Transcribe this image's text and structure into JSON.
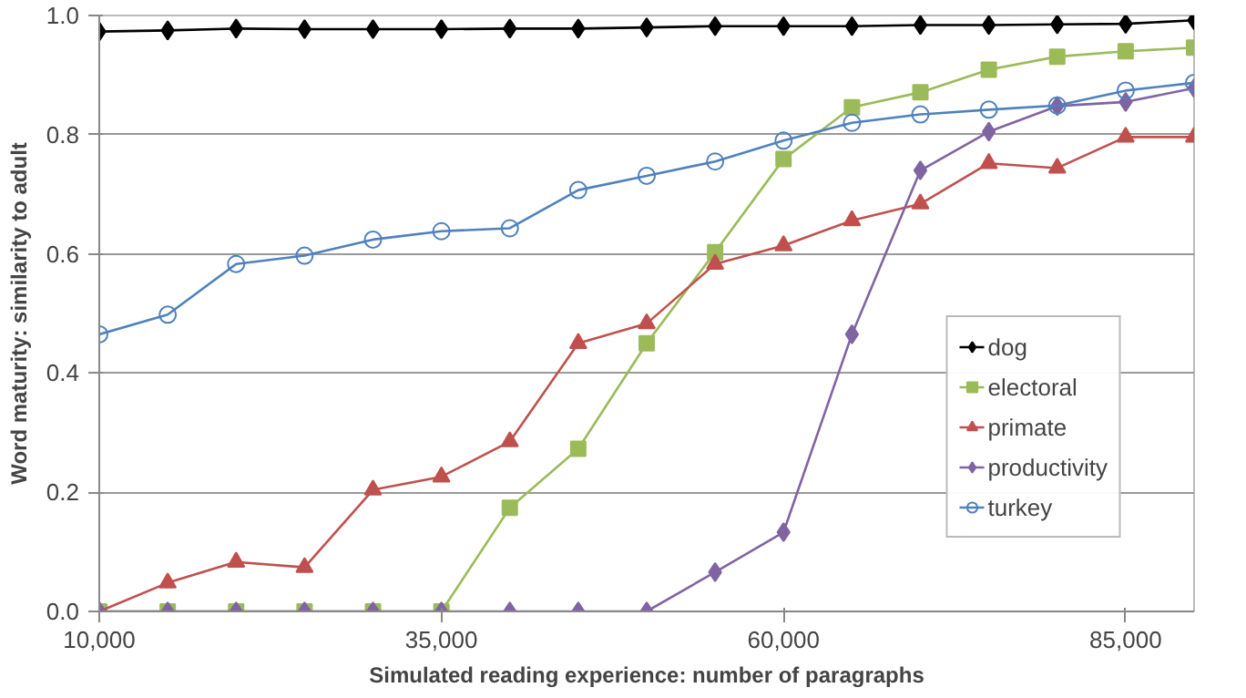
{
  "chart_data": {
    "type": "line",
    "xlabel": "Simulated reading experience: number of paragraphs",
    "ylabel": "Word maturity: similarity to adult",
    "x": [
      10000,
      15000,
      20000,
      25000,
      30000,
      35000,
      40000,
      45000,
      50000,
      55000,
      60000,
      65000,
      70000,
      75000,
      80000,
      85000,
      90000
    ],
    "xlim": [
      10000,
      90000
    ],
    "xticks": [
      {
        "value": 10000,
        "label": "10,000"
      },
      {
        "value": 35000,
        "label": "35,000"
      },
      {
        "value": 60000,
        "label": "60,000"
      },
      {
        "value": 85000,
        "label": "85,000"
      }
    ],
    "ylim": [
      0,
      1
    ],
    "yticks": [
      {
        "value": 0,
        "label": "0.0"
      },
      {
        "value": 0.2,
        "label": "0.2"
      },
      {
        "value": 0.4,
        "label": "0.4"
      },
      {
        "value": 0.6,
        "label": "0.6"
      },
      {
        "value": 0.8,
        "label": "0.8"
      },
      {
        "value": 1,
        "label": "1.0"
      }
    ],
    "grid": "y",
    "legend": "bottom right",
    "series": [
      {
        "name": "dog",
        "color": "#000000",
        "marker": "diamond",
        "values": [
          0.973,
          0.975,
          0.978,
          0.977,
          0.977,
          0.977,
          0.978,
          0.978,
          0.98,
          0.982,
          0.982,
          0.982,
          0.984,
          0.984,
          0.985,
          0.986,
          0.992
        ]
      },
      {
        "name": "electoral",
        "color": "#9bbb59",
        "marker": "square",
        "values": [
          0,
          0,
          0,
          0,
          0,
          0,
          0.174,
          0.273,
          0.45,
          0.603,
          0.759,
          0.846,
          0.871,
          0.909,
          0.931,
          0.94,
          0.946
        ]
      },
      {
        "name": "primate",
        "color": "#c0504d",
        "marker": "triangle",
        "values": [
          0,
          0.048,
          0.083,
          0.074,
          0.204,
          0.226,
          0.285,
          0.45,
          0.483,
          0.583,
          0.614,
          0.656,
          0.684,
          0.752,
          0.744,
          0.796,
          0.796
        ]
      },
      {
        "name": "productivity",
        "color": "#8064a2",
        "marker": "diamond",
        "values": [
          0,
          0,
          0,
          0,
          0,
          0,
          0,
          0,
          0,
          0.066,
          0.133,
          0.465,
          0.74,
          0.805,
          0.848,
          0.855,
          0.878
        ]
      },
      {
        "name": "turkey",
        "color": "#4f81bd",
        "marker": "circle",
        "values": [
          0.465,
          0.498,
          0.583,
          0.597,
          0.624,
          0.638,
          0.643,
          0.707,
          0.731,
          0.755,
          0.79,
          0.82,
          0.834,
          0.842,
          0.849,
          0.874,
          0.887
        ]
      }
    ]
  }
}
